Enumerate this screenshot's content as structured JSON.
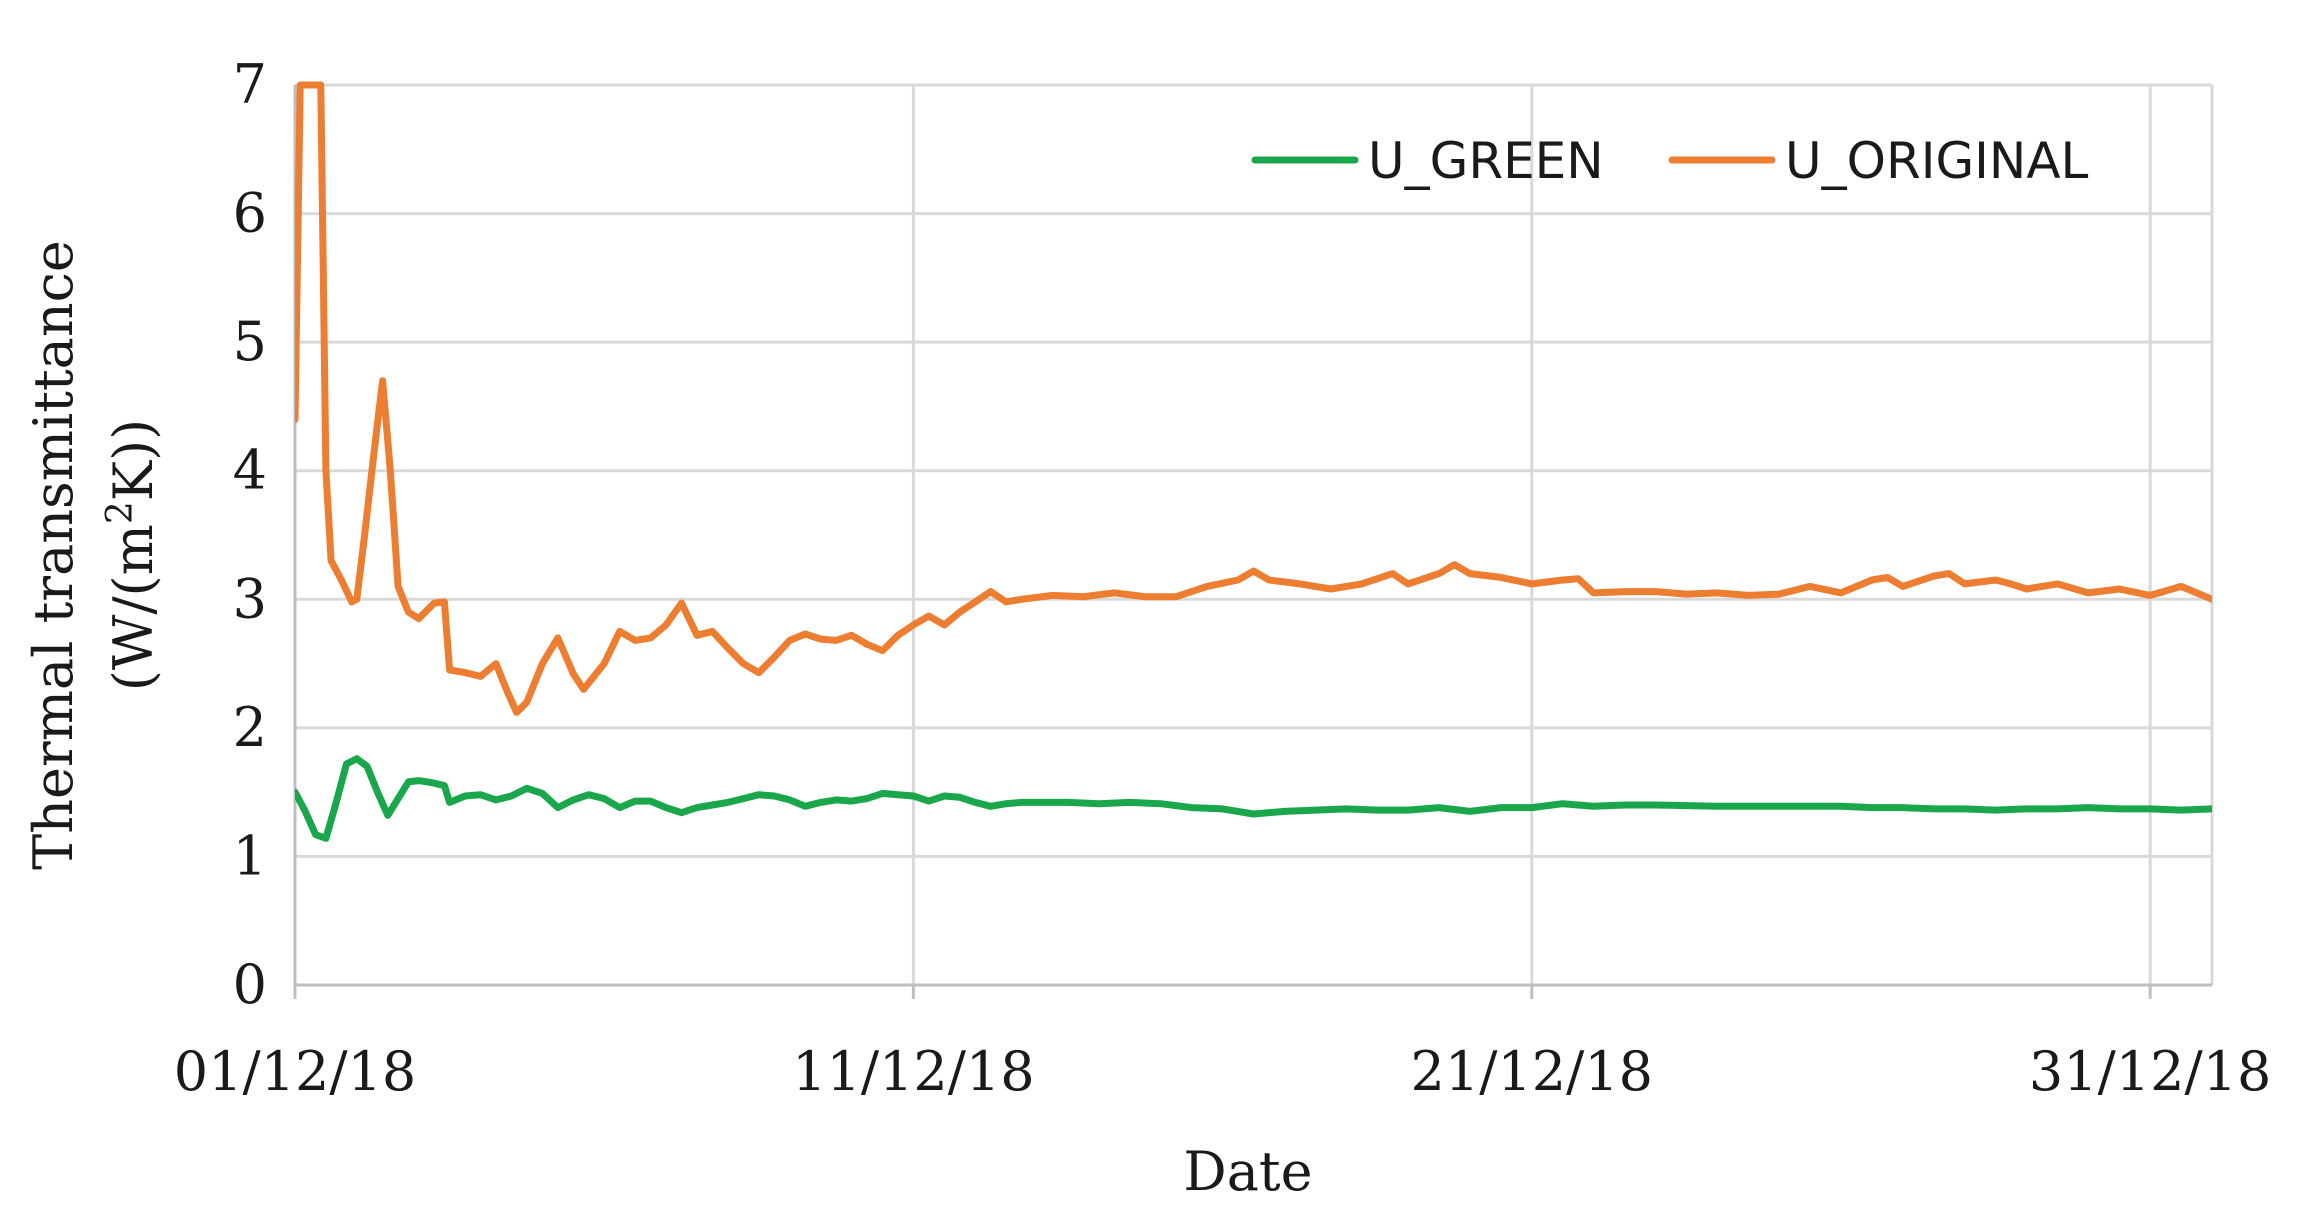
{
  "chart_data": {
    "type": "line",
    "title": "",
    "xlabel": "Date",
    "ylabel_line1": "Thermal transmittance",
    "ylabel_line2_prefix": "(W/(m",
    "ylabel_line2_sup": "2",
    "ylabel_line2_suffix": "K))",
    "x_domain": [
      "2018-12-01",
      "2019-01-01"
    ],
    "x_ticks": [
      {
        "date": "2018-12-01",
        "label": "01/12/18"
      },
      {
        "date": "2018-12-11",
        "label": "11/12/18"
      },
      {
        "date": "2018-12-21",
        "label": "21/12/18"
      },
      {
        "date": "2018-12-31",
        "label": "31/12/18"
      }
    ],
    "ylim": [
      0,
      7
    ],
    "y_ticks": [
      "0",
      "1",
      "2",
      "3",
      "4",
      "5",
      "6",
      "7"
    ],
    "grid": true,
    "legend_position": "top-right",
    "series": [
      {
        "name": "U_GREEN",
        "color": "#1aa64a",
        "points": [
          [
            "2018-12-01T00",
            1.5
          ],
          [
            "2018-12-01T04",
            1.35
          ],
          [
            "2018-12-01T08",
            1.17
          ],
          [
            "2018-12-01T12",
            1.14
          ],
          [
            "2018-12-01T16",
            1.42
          ],
          [
            "2018-12-01T20",
            1.72
          ],
          [
            "2018-12-02T00",
            1.76
          ],
          [
            "2018-12-02T04",
            1.7
          ],
          [
            "2018-12-02T08",
            1.5
          ],
          [
            "2018-12-02T12",
            1.32
          ],
          [
            "2018-12-02T16",
            1.45
          ],
          [
            "2018-12-02T20",
            1.58
          ],
          [
            "2018-12-03T00",
            1.59
          ],
          [
            "2018-12-03T06",
            1.57
          ],
          [
            "2018-12-03T10",
            1.55
          ],
          [
            "2018-12-03T12",
            1.42
          ],
          [
            "2018-12-03T18",
            1.47
          ],
          [
            "2018-12-04T00",
            1.48
          ],
          [
            "2018-12-04T06",
            1.44
          ],
          [
            "2018-12-04T12",
            1.47
          ],
          [
            "2018-12-04T18",
            1.53
          ],
          [
            "2018-12-05T00",
            1.49
          ],
          [
            "2018-12-05T06",
            1.38
          ],
          [
            "2018-12-05T12",
            1.44
          ],
          [
            "2018-12-05T18",
            1.48
          ],
          [
            "2018-12-06T00",
            1.45
          ],
          [
            "2018-12-06T06",
            1.38
          ],
          [
            "2018-12-06T12",
            1.43
          ],
          [
            "2018-12-06T18",
            1.43
          ],
          [
            "2018-12-07T00",
            1.38
          ],
          [
            "2018-12-07T06",
            1.34
          ],
          [
            "2018-12-07T12",
            1.38
          ],
          [
            "2018-12-07T18",
            1.4
          ],
          [
            "2018-12-08T00",
            1.42
          ],
          [
            "2018-12-08T06",
            1.45
          ],
          [
            "2018-12-08T12",
            1.48
          ],
          [
            "2018-12-08T18",
            1.47
          ],
          [
            "2018-12-09T00",
            1.44
          ],
          [
            "2018-12-09T06",
            1.39
          ],
          [
            "2018-12-09T12",
            1.42
          ],
          [
            "2018-12-09T18",
            1.44
          ],
          [
            "2018-12-10T00",
            1.43
          ],
          [
            "2018-12-10T06",
            1.45
          ],
          [
            "2018-12-10T12",
            1.49
          ],
          [
            "2018-12-10T18",
            1.48
          ],
          [
            "2018-12-11T00",
            1.47
          ],
          [
            "2018-12-11T06",
            1.43
          ],
          [
            "2018-12-11T12",
            1.47
          ],
          [
            "2018-12-11T18",
            1.46
          ],
          [
            "2018-12-12T00",
            1.42
          ],
          [
            "2018-12-12T06",
            1.39
          ],
          [
            "2018-12-12T12",
            1.41
          ],
          [
            "2018-12-12T18",
            1.42
          ],
          [
            "2018-12-13T12",
            1.42
          ],
          [
            "2018-12-14T00",
            1.41
          ],
          [
            "2018-12-14T12",
            1.42
          ],
          [
            "2018-12-15T00",
            1.41
          ],
          [
            "2018-12-15T12",
            1.38
          ],
          [
            "2018-12-16T00",
            1.37
          ],
          [
            "2018-12-16T12",
            1.33
          ],
          [
            "2018-12-17T00",
            1.35
          ],
          [
            "2018-12-17T12",
            1.36
          ],
          [
            "2018-12-18T00",
            1.37
          ],
          [
            "2018-12-18T12",
            1.36
          ],
          [
            "2018-12-19T00",
            1.36
          ],
          [
            "2018-12-19T12",
            1.38
          ],
          [
            "2018-12-20T00",
            1.35
          ],
          [
            "2018-12-20T12",
            1.38
          ],
          [
            "2018-12-21T00",
            1.38
          ],
          [
            "2018-12-21T12",
            1.41
          ],
          [
            "2018-12-22T00",
            1.39
          ],
          [
            "2018-12-22T12",
            1.4
          ],
          [
            "2018-12-23T00",
            1.4
          ],
          [
            "2018-12-24T00",
            1.39
          ],
          [
            "2018-12-25T00",
            1.39
          ],
          [
            "2018-12-26T00",
            1.39
          ],
          [
            "2018-12-26T12",
            1.38
          ],
          [
            "2018-12-27T00",
            1.38
          ],
          [
            "2018-12-27T12",
            1.37
          ],
          [
            "2018-12-28T00",
            1.37
          ],
          [
            "2018-12-28T12",
            1.36
          ],
          [
            "2018-12-29T00",
            1.37
          ],
          [
            "2018-12-29T12",
            1.37
          ],
          [
            "2018-12-30T00",
            1.38
          ],
          [
            "2018-12-30T12",
            1.37
          ],
          [
            "2018-12-31T00",
            1.37
          ],
          [
            "2018-12-31T12",
            1.36
          ],
          [
            "2019-01-01T00",
            1.37
          ]
        ]
      },
      {
        "name": "U_ORIGINAL",
        "color": "#ed7d31",
        "points": [
          [
            "2018-12-01T00",
            4.4
          ],
          [
            "2018-12-01T02",
            7.0
          ],
          [
            "2018-12-01T04",
            7.0
          ],
          [
            "2018-12-01T06",
            7.0
          ],
          [
            "2018-12-01T08",
            7.0
          ],
          [
            "2018-12-01T10",
            7.0
          ],
          [
            "2018-12-01T12",
            4.0
          ],
          [
            "2018-12-01T14",
            3.3
          ],
          [
            "2018-12-01T18",
            3.15
          ],
          [
            "2018-12-01T22",
            2.98
          ],
          [
            "2018-12-02T00",
            3.0
          ],
          [
            "2018-12-02T03",
            3.5
          ],
          [
            "2018-12-02T07",
            4.2
          ],
          [
            "2018-12-02T10",
            4.7
          ],
          [
            "2018-12-02T13",
            4.0
          ],
          [
            "2018-12-02T16",
            3.1
          ],
          [
            "2018-12-02T20",
            2.9
          ],
          [
            "2018-12-03T00",
            2.85
          ],
          [
            "2018-12-03T06",
            2.97
          ],
          [
            "2018-12-03T10",
            2.98
          ],
          [
            "2018-12-03T12",
            2.45
          ],
          [
            "2018-12-03T18",
            2.43
          ],
          [
            "2018-12-04T00",
            2.4
          ],
          [
            "2018-12-04T06",
            2.5
          ],
          [
            "2018-12-04T10",
            2.3
          ],
          [
            "2018-12-04T14",
            2.12
          ],
          [
            "2018-12-04T18",
            2.2
          ],
          [
            "2018-12-05T00",
            2.5
          ],
          [
            "2018-12-05T06",
            2.7
          ],
          [
            "2018-12-05T12",
            2.42
          ],
          [
            "2018-12-05T16",
            2.3
          ],
          [
            "2018-12-06T00",
            2.5
          ],
          [
            "2018-12-06T06",
            2.75
          ],
          [
            "2018-12-06T12",
            2.68
          ],
          [
            "2018-12-06T18",
            2.7
          ],
          [
            "2018-12-07T00",
            2.8
          ],
          [
            "2018-12-07T06",
            2.97
          ],
          [
            "2018-12-07T12",
            2.72
          ],
          [
            "2018-12-07T18",
            2.75
          ],
          [
            "2018-12-08T00",
            2.62
          ],
          [
            "2018-12-08T06",
            2.5
          ],
          [
            "2018-12-08T12",
            2.43
          ],
          [
            "2018-12-08T18",
            2.55
          ],
          [
            "2018-12-09T00",
            2.68
          ],
          [
            "2018-12-09T06",
            2.73
          ],
          [
            "2018-12-09T12",
            2.69
          ],
          [
            "2018-12-09T18",
            2.68
          ],
          [
            "2018-12-10T00",
            2.72
          ],
          [
            "2018-12-10T06",
            2.65
          ],
          [
            "2018-12-10T12",
            2.6
          ],
          [
            "2018-12-10T18",
            2.72
          ],
          [
            "2018-12-11T00",
            2.8
          ],
          [
            "2018-12-11T06",
            2.87
          ],
          [
            "2018-12-11T12",
            2.8
          ],
          [
            "2018-12-11T18",
            2.9
          ],
          [
            "2018-12-12T00",
            2.98
          ],
          [
            "2018-12-12T06",
            3.06
          ],
          [
            "2018-12-12T12",
            2.98
          ],
          [
            "2018-12-12T18",
            3.0
          ],
          [
            "2018-12-13T06",
            3.03
          ],
          [
            "2018-12-13T18",
            3.02
          ],
          [
            "2018-12-14T06",
            3.05
          ],
          [
            "2018-12-14T18",
            3.02
          ],
          [
            "2018-12-15T06",
            3.02
          ],
          [
            "2018-12-15T18",
            3.1
          ],
          [
            "2018-12-16T06",
            3.15
          ],
          [
            "2018-12-16T12",
            3.22
          ],
          [
            "2018-12-16T18",
            3.15
          ],
          [
            "2018-12-17T06",
            3.12
          ],
          [
            "2018-12-17T18",
            3.08
          ],
          [
            "2018-12-18T06",
            3.12
          ],
          [
            "2018-12-18T18",
            3.2
          ],
          [
            "2018-12-19T00",
            3.12
          ],
          [
            "2018-12-19T12",
            3.2
          ],
          [
            "2018-12-19T18",
            3.27
          ],
          [
            "2018-12-20T00",
            3.2
          ],
          [
            "2018-12-20T12",
            3.17
          ],
          [
            "2018-12-21T00",
            3.12
          ],
          [
            "2018-12-21T12",
            3.15
          ],
          [
            "2018-12-21T18",
            3.16
          ],
          [
            "2018-12-22T00",
            3.05
          ],
          [
            "2018-12-22T12",
            3.06
          ],
          [
            "2018-12-23T00",
            3.06
          ],
          [
            "2018-12-23T12",
            3.04
          ],
          [
            "2018-12-24T00",
            3.05
          ],
          [
            "2018-12-24T12",
            3.03
          ],
          [
            "2018-12-25T00",
            3.04
          ],
          [
            "2018-12-25T12",
            3.1
          ],
          [
            "2018-12-26T00",
            3.05
          ],
          [
            "2018-12-26T12",
            3.15
          ],
          [
            "2018-12-26T18",
            3.17
          ],
          [
            "2018-12-27T00",
            3.1
          ],
          [
            "2018-12-27T12",
            3.18
          ],
          [
            "2018-12-27T18",
            3.2
          ],
          [
            "2018-12-28T00",
            3.12
          ],
          [
            "2018-12-28T12",
            3.15
          ],
          [
            "2018-12-28T18",
            3.12
          ],
          [
            "2018-12-29T00",
            3.08
          ],
          [
            "2018-12-29T12",
            3.12
          ],
          [
            "2018-12-30T00",
            3.05
          ],
          [
            "2018-12-30T12",
            3.08
          ],
          [
            "2018-12-31T00",
            3.03
          ],
          [
            "2018-12-31T12",
            3.1
          ],
          [
            "2019-01-01T00",
            3.0
          ]
        ]
      }
    ]
  }
}
